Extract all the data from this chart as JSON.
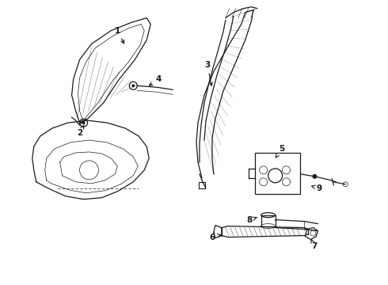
{
  "bg_color": "#ffffff",
  "line_color": "#1a1a1a",
  "fig_width": 4.9,
  "fig_height": 3.6,
  "dpi": 100,
  "label_fontsize": 7.5,
  "lw_main": 0.9,
  "lw_thin": 0.5
}
